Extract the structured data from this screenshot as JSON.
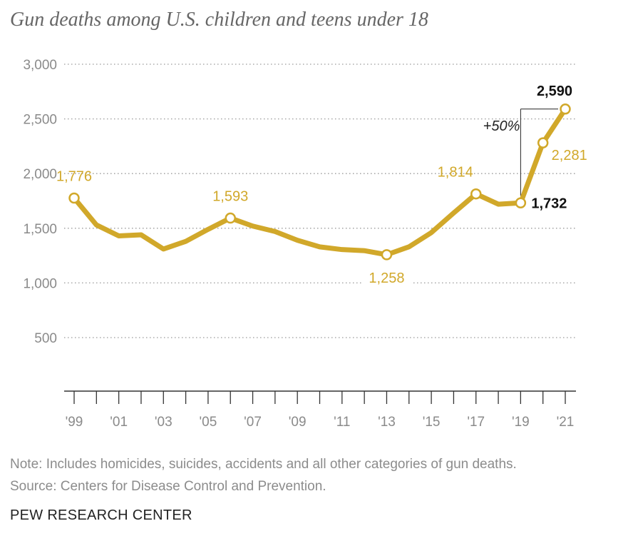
{
  "chart_data": {
    "type": "line",
    "title": "Gun deaths among U.S. children and teens under 18",
    "x": [
      1999,
      2000,
      2001,
      2002,
      2003,
      2004,
      2005,
      2006,
      2007,
      2008,
      2009,
      2010,
      2011,
      2012,
      2013,
      2014,
      2015,
      2016,
      2017,
      2018,
      2019,
      2020,
      2021
    ],
    "values": [
      1776,
      1530,
      1430,
      1440,
      1310,
      1380,
      1490,
      1593,
      1520,
      1470,
      1390,
      1330,
      1305,
      1295,
      1258,
      1330,
      1460,
      1640,
      1814,
      1720,
      1732,
      2281,
      2590
    ],
    "ylim": [
      0,
      3000
    ],
    "yticks": [
      500,
      1000,
      1500,
      2000,
      2500,
      3000
    ],
    "ytick_labels": [
      "500",
      "1,000",
      "1,500",
      "2,000",
      "2,500",
      "3,000"
    ],
    "xtick_labels": [
      {
        "year": 1999,
        "label": "'99"
      },
      {
        "year": 2001,
        "label": "'01"
      },
      {
        "year": 2003,
        "label": "'03"
      },
      {
        "year": 2005,
        "label": "'05"
      },
      {
        "year": 2007,
        "label": "'07"
      },
      {
        "year": 2009,
        "label": "'09"
      },
      {
        "year": 2011,
        "label": "'11"
      },
      {
        "year": 2013,
        "label": "'13"
      },
      {
        "year": 2015,
        "label": "'15"
      },
      {
        "year": 2017,
        "label": "'17"
      },
      {
        "year": 2019,
        "label": "'19"
      },
      {
        "year": 2021,
        "label": "'21"
      }
    ],
    "grid": true,
    "color": "#d1a82a",
    "markers": [
      1999,
      2006,
      2013,
      2017,
      2019,
      2020,
      2021
    ],
    "data_labels": [
      {
        "year": 1999,
        "text": "1,776",
        "style": "gold",
        "pos": "above"
      },
      {
        "year": 2006,
        "text": "1,593",
        "style": "gold",
        "pos": "above"
      },
      {
        "year": 2013,
        "text": "1,258",
        "style": "gold",
        "pos": "below"
      },
      {
        "year": 2017,
        "text": "1,814",
        "style": "gold",
        "pos": "above-left"
      },
      {
        "year": 2019,
        "text": "1,732",
        "style": "bold",
        "pos": "right"
      },
      {
        "year": 2020,
        "text": "2,281",
        "style": "gold",
        "pos": "right"
      },
      {
        "year": 2021,
        "text": "2,590",
        "style": "bold",
        "pos": "above-left"
      }
    ],
    "annotation": {
      "text": "+50%",
      "from_year": 2019,
      "to_year": 2021
    }
  },
  "note": "Note: Includes homicides, suicides, accidents and all other categories of gun deaths.",
  "source": "Source: Centers for Disease Control and Prevention.",
  "brand": "PEW RESEARCH CENTER",
  "colors": {
    "line": "#d1a82a",
    "label_gold": "#d1a82a",
    "label_bold": "#111111",
    "grid": "#999999",
    "tick": "#8a8a8a"
  }
}
